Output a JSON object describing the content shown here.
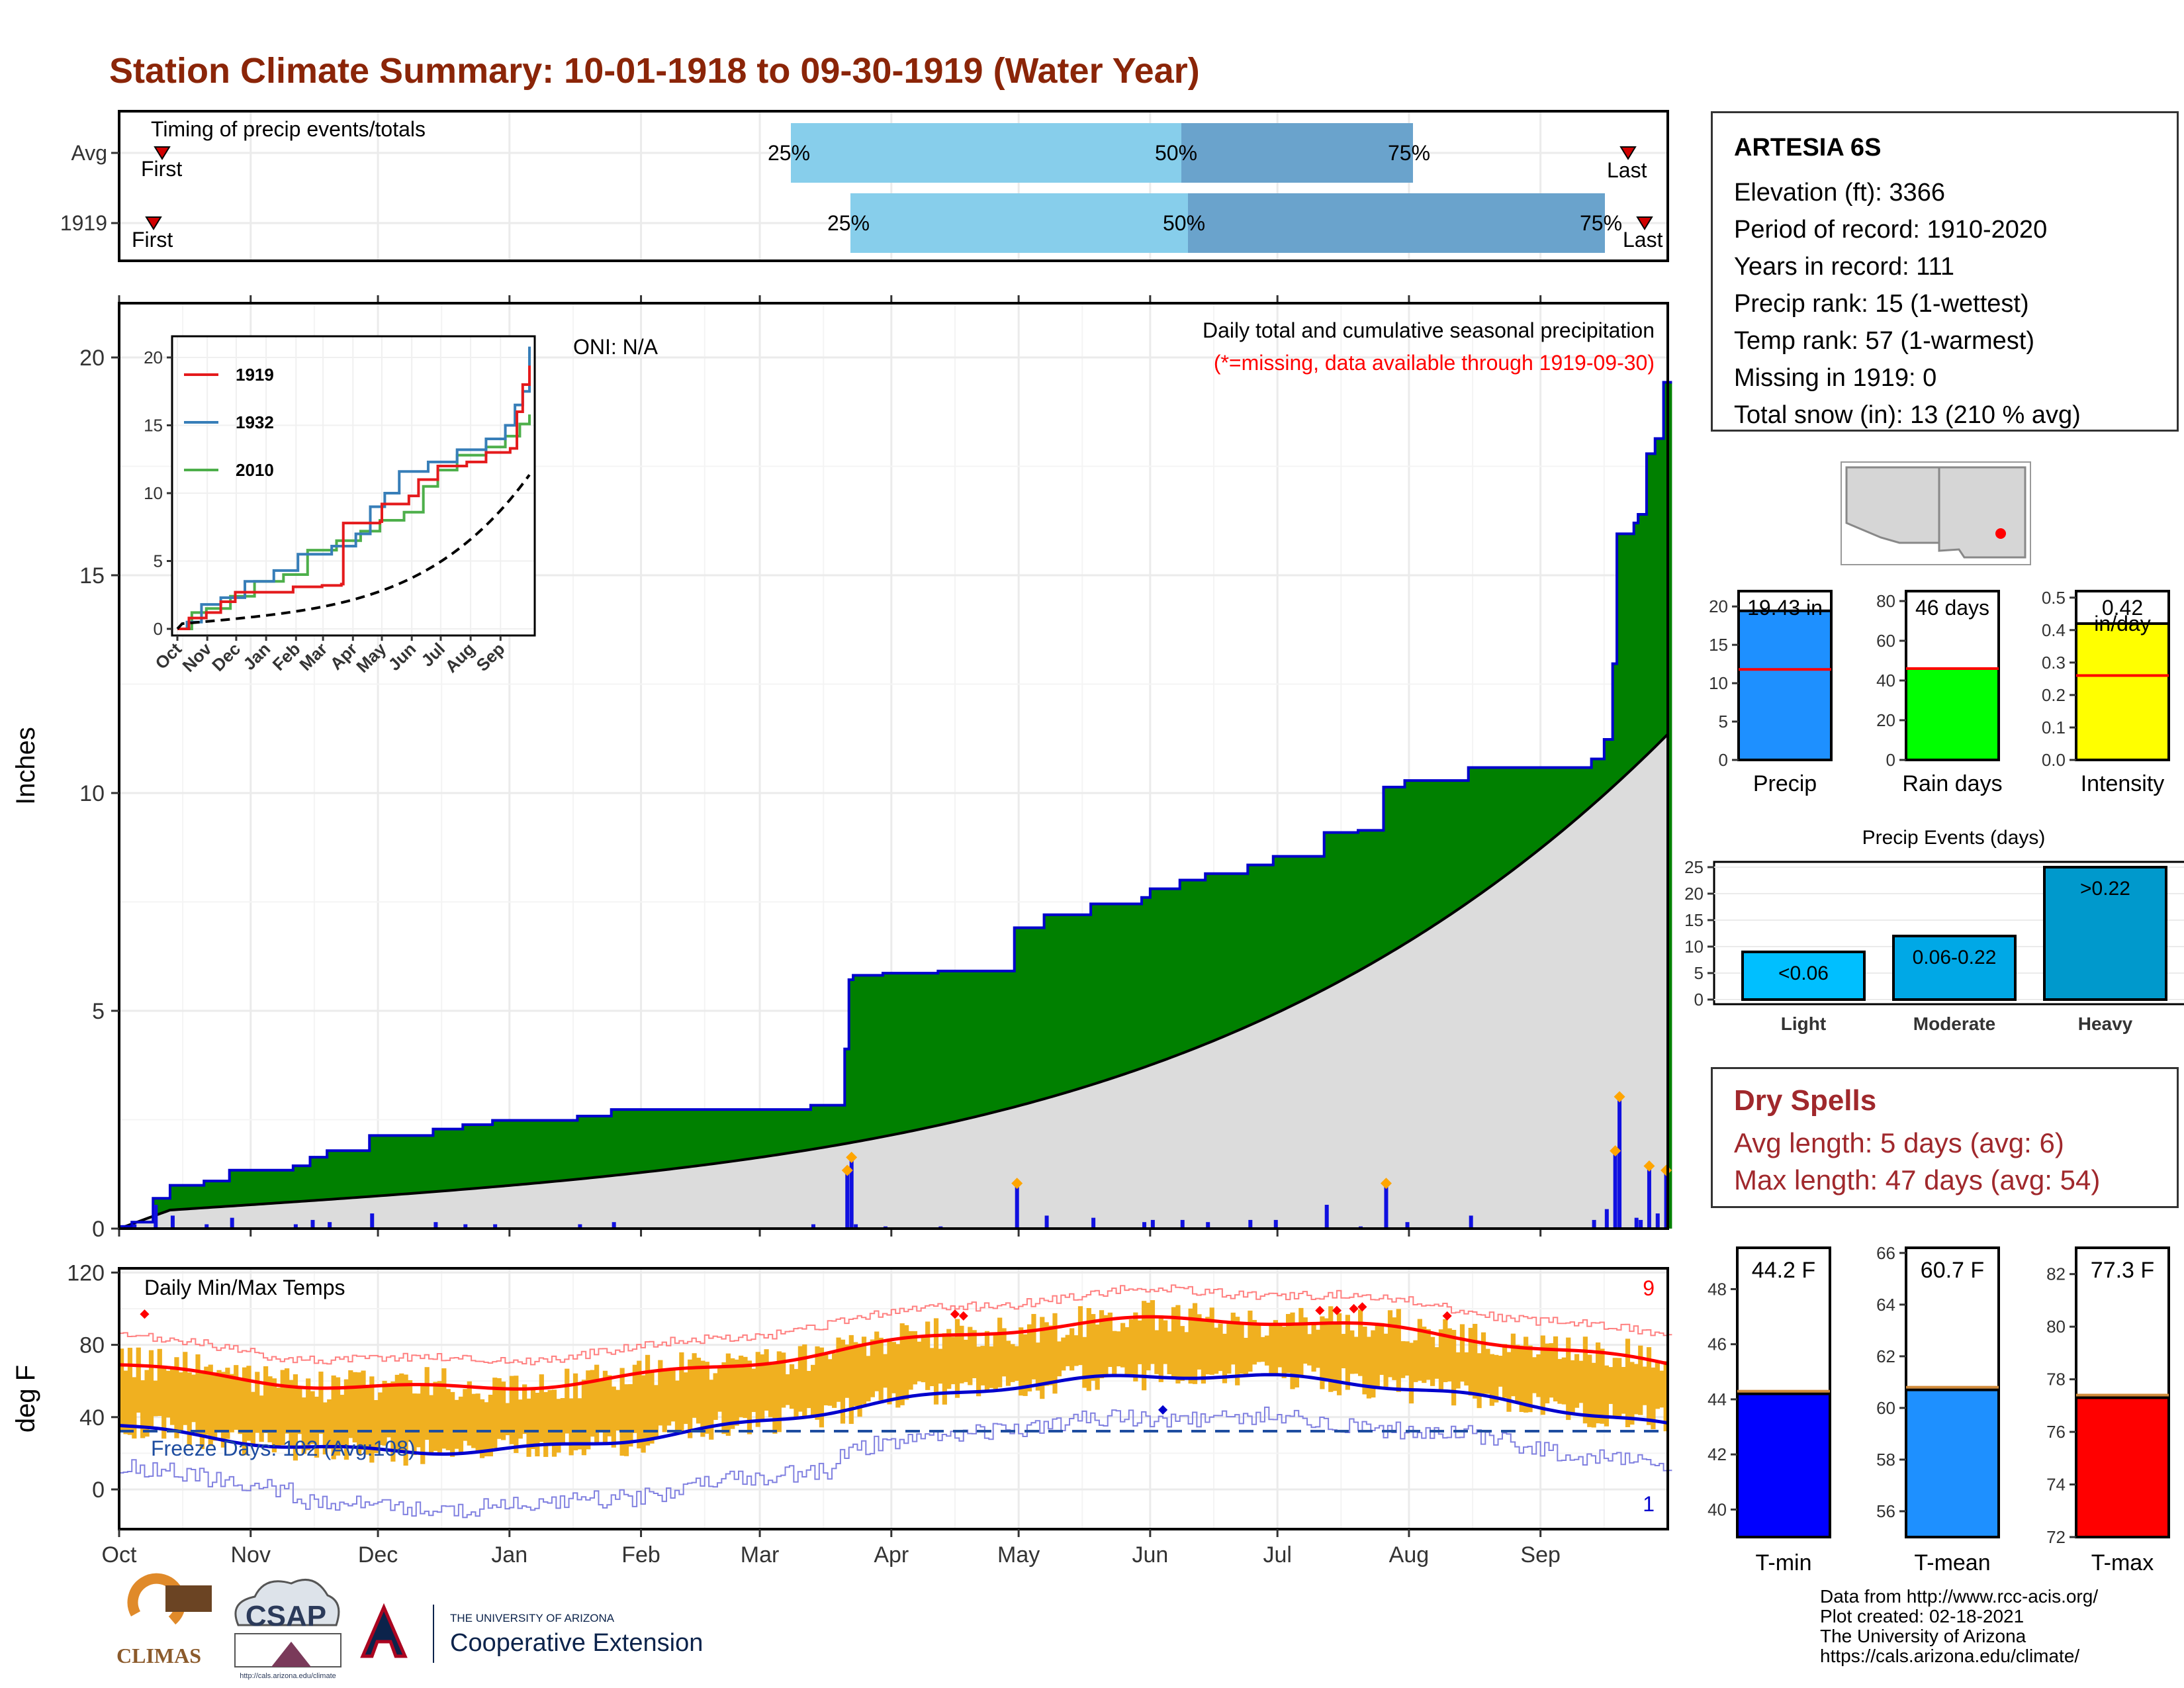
{
  "page": {
    "title": "Station Climate Summary: 10-01-1918 to 09-30-1919 (Water Year)",
    "title_color": "#8b2508"
  },
  "timing_panel": {
    "label": "Timing of precip events/totals",
    "rows": [
      {
        "name": "Avg",
        "first": "First",
        "last": "Last",
        "p25": "25%",
        "p50": "50%",
        "p75": "75%"
      },
      {
        "name": "1919",
        "first": "First",
        "last": "Last",
        "p25": "25%",
        "p50": "50%",
        "p75": "75%"
      }
    ],
    "colors": {
      "light": "#87ceeb",
      "dark": "#6aa3cc",
      "marker": "#d00000"
    }
  },
  "precip_panel": {
    "oni": "ONI: N/A",
    "caption": "Daily total and cumulative seasonal precipitation",
    "missing_note": "(*=missing, data available through 1919-09-30)",
    "ylabel": "Inches",
    "yticks": [
      "0",
      "5",
      "10",
      "15",
      "20"
    ],
    "colors": {
      "green": "#008000",
      "grey": "#dcdcdc",
      "line": "#0000cd",
      "bars": "#1010e0",
      "diamond": "#ffa500"
    }
  },
  "inset": {
    "legend": [
      {
        "name": "1919",
        "color": "#e41a1c"
      },
      {
        "name": "1932",
        "color": "#377eb8"
      },
      {
        "name": "2010",
        "color": "#4daf4a"
      }
    ],
    "yticks": [
      "0",
      "5",
      "10",
      "15",
      "20"
    ],
    "xticks": [
      "Oct",
      "Nov",
      "Dec",
      "Jan",
      "Feb",
      "Mar",
      "Apr",
      "May",
      "Jun",
      "Jul",
      "Aug",
      "Sep"
    ]
  },
  "temp_panel": {
    "label": "Daily Min/Max Temps",
    "freeze": "Freeze Days: 102 (Avg:108)",
    "ylabel": "deg F",
    "yticks": [
      "120",
      "80",
      "40",
      "0"
    ],
    "count_high": "9",
    "count_low": "1",
    "xticks": [
      "Oct",
      "Nov",
      "Dec",
      "Jan",
      "Feb",
      "Mar",
      "Apr",
      "May",
      "Jun",
      "Jul",
      "Aug",
      "Sep"
    ],
    "colors": {
      "bars": "#f0b020",
      "max": "#ff0000",
      "min": "#0000cd",
      "hist_max": "#ff8080",
      "hist_min": "#8080e0"
    }
  },
  "station": {
    "name": "ARTESIA 6S",
    "lines": [
      "Elevation (ft): 3366",
      "Period of record: 1910-2020",
      "Years in record: 111",
      "Precip rank: 15 (1-wettest)",
      "Temp rank: 57 (1-warmest)",
      "Missing in 1919: 0",
      "Total snow (in): 13 (210 % avg)"
    ]
  },
  "summary_bars": [
    {
      "label": "Precip",
      "value_text": "19.43 in",
      "value": 19.43,
      "avg": 11.8,
      "ymax": 22,
      "yticks": [
        "0",
        "5",
        "10",
        "15",
        "20"
      ],
      "color": "#1e90ff"
    },
    {
      "label": "Rain days",
      "value_text": "46 days",
      "value": 46,
      "avg": 46,
      "ymax": 85,
      "yticks": [
        "0",
        "20",
        "40",
        "60",
        "80"
      ],
      "color": "#00ff00"
    },
    {
      "label": "Intensity",
      "value_text": "0.42",
      "unit": "in/day",
      "value": 0.42,
      "avg": 0.26,
      "ymax": 0.52,
      "yticks": [
        "0.0",
        "0.1",
        "0.2",
        "0.3",
        "0.4",
        "0.5"
      ],
      "color": "#ffff00"
    }
  ],
  "precip_events": {
    "title": "Precip Events (days)",
    "yticks": [
      "0",
      "5",
      "10",
      "15",
      "20",
      "25"
    ],
    "bars": [
      {
        "label": "Light",
        "range": "<0.06",
        "value": 9,
        "color": "#00bfff"
      },
      {
        "label": "Moderate",
        "range": "0.06-0.22",
        "value": 12,
        "color": "#00a8e6"
      },
      {
        "label": "Heavy",
        "range": ">0.22",
        "value": 25,
        "color": "#0099cc"
      }
    ]
  },
  "dry_spells": {
    "title": "Dry Spells",
    "avg": "Avg length: 5 days (avg: 6)",
    "max": "Max length: 47 days (avg: 54)"
  },
  "temp_bars": [
    {
      "label": "T-min",
      "value_text": "44.2 F",
      "value": 44.2,
      "ymin": 39,
      "ymax": 49.5,
      "yticks": [
        "40",
        "42",
        "44",
        "46",
        "48"
      ],
      "color": "#0000ff"
    },
    {
      "label": "T-mean",
      "value_text": "60.7 F",
      "value": 60.7,
      "ymin": 55,
      "ymax": 66.2,
      "yticks": [
        "56",
        "58",
        "60",
        "62",
        "64",
        "66"
      ],
      "color": "#1e90ff"
    },
    {
      "label": "T-max",
      "value_text": "77.3 F",
      "value": 77.3,
      "ymin": 72,
      "ymax": 83,
      "yticks": [
        "72",
        "74",
        "76",
        "78",
        "80",
        "82"
      ],
      "color": "#ff0000"
    }
  ],
  "logos": {
    "climas": "CLIMAS",
    "csap": "CSAP",
    "csap_url": "http://cals.arizona.edu/climate",
    "ua_small": "THE UNIVERSITY OF ARIZONA",
    "ua_big": "Cooperative Extension"
  },
  "credits": [
    "Data from http://www.rcc-acis.org/",
    "Plot created: 02-18-2021",
    "The University of Arizona",
    "https://cals.arizona.edu/climate/"
  ]
}
